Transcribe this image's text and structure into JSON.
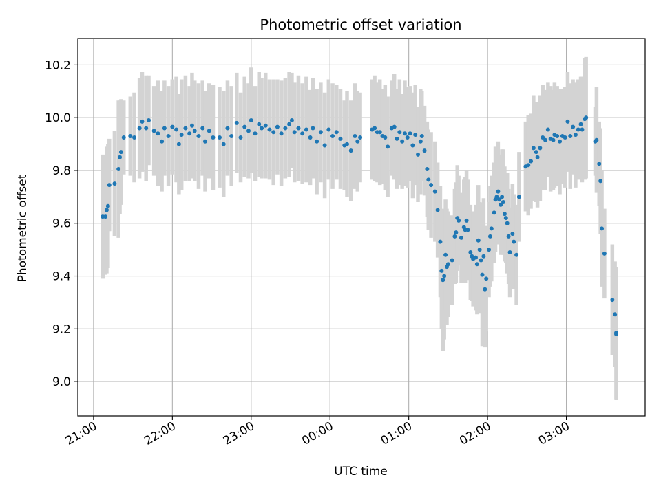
{
  "chart_data": {
    "type": "scatter",
    "title": "Photometric offset variation",
    "xlabel": "UTC time",
    "ylabel": "Photometric offset",
    "x_is_time": true,
    "xlim": [
      "20:48",
      "04:00"
    ],
    "ylim": [
      8.87,
      10.3
    ],
    "x_ticks": [
      "21:00",
      "22:00",
      "23:00",
      "00:00",
      "01:00",
      "02:00",
      "03:00"
    ],
    "y_ticks": [
      9.0,
      9.2,
      9.4,
      9.6,
      9.8,
      10.0,
      10.2
    ],
    "y_tick_labels": [
      "9.0",
      "9.2",
      "9.4",
      "9.6",
      "9.8",
      "10.0",
      "10.2"
    ],
    "grid": true,
    "point_color": "#1f77b4",
    "errorbar_color": "#d3d3d3",
    "series": [
      {
        "points": [
          {
            "t": "21:07",
            "y": 9.625,
            "err": 0.235
          },
          {
            "t": "21:09",
            "y": 9.625,
            "err": 0.22
          },
          {
            "t": "21:10",
            "y": 9.65,
            "err": 0.24
          },
          {
            "t": "21:11",
            "y": 9.665,
            "err": 0.235
          },
          {
            "t": "21:12",
            "y": 9.745,
            "err": 0.175
          },
          {
            "t": "21:16",
            "y": 9.75,
            "err": 0.2
          },
          {
            "t": "21:19",
            "y": 9.805,
            "err": 0.26
          },
          {
            "t": "21:20",
            "y": 9.85,
            "err": 0.215
          },
          {
            "t": "21:21",
            "y": 9.87,
            "err": 0.2
          },
          {
            "t": "21:23",
            "y": 9.925,
            "err": 0.14
          },
          {
            "t": "21:28",
            "y": 9.93,
            "err": 0.15
          },
          {
            "t": "21:31",
            "y": 9.925,
            "err": 0.17
          },
          {
            "t": "21:35",
            "y": 9.96,
            "err": 0.19
          },
          {
            "t": "21:37",
            "y": 9.985,
            "err": 0.19
          },
          {
            "t": "21:40",
            "y": 9.96,
            "err": 0.2
          },
          {
            "t": "21:42",
            "y": 9.99,
            "err": 0.17
          },
          {
            "t": "21:46",
            "y": 9.95,
            "err": 0.17
          },
          {
            "t": "21:49",
            "y": 9.94,
            "err": 0.2
          },
          {
            "t": "21:52",
            "y": 9.91,
            "err": 0.19
          },
          {
            "t": "21:54",
            "y": 9.96,
            "err": 0.18
          },
          {
            "t": "21:57",
            "y": 9.93,
            "err": 0.19
          },
          {
            "t": "22:00",
            "y": 9.965,
            "err": 0.18
          },
          {
            "t": "22:03",
            "y": 9.955,
            "err": 0.2
          },
          {
            "t": "22:05",
            "y": 9.9,
            "err": 0.19
          },
          {
            "t": "22:07",
            "y": 9.935,
            "err": 0.21
          },
          {
            "t": "22:10",
            "y": 9.96,
            "err": 0.2
          },
          {
            "t": "22:13",
            "y": 9.94,
            "err": 0.18
          },
          {
            "t": "22:15",
            "y": 9.97,
            "err": 0.2
          },
          {
            "t": "22:17",
            "y": 9.95,
            "err": 0.19
          },
          {
            "t": "22:20",
            "y": 9.93,
            "err": 0.2
          },
          {
            "t": "22:23",
            "y": 9.96,
            "err": 0.18
          },
          {
            "t": "22:25",
            "y": 9.91,
            "err": 0.19
          },
          {
            "t": "22:28",
            "y": 9.95,
            "err": 0.18
          },
          {
            "t": "22:31",
            "y": 9.925,
            "err": 0.2
          },
          {
            "t": "22:36",
            "y": 9.925,
            "err": 0.19
          },
          {
            "t": "22:39",
            "y": 9.9,
            "err": 0.2
          },
          {
            "t": "22:42",
            "y": 9.96,
            "err": 0.18
          },
          {
            "t": "22:45",
            "y": 9.93,
            "err": 0.19
          },
          {
            "t": "22:49",
            "y": 9.98,
            "err": 0.19
          },
          {
            "t": "22:52",
            "y": 9.925,
            "err": 0.17
          },
          {
            "t": "22:55",
            "y": 9.965,
            "err": 0.19
          },
          {
            "t": "22:58",
            "y": 9.95,
            "err": 0.18
          },
          {
            "t": "23:00",
            "y": 9.99,
            "err": 0.2
          },
          {
            "t": "23:03",
            "y": 9.94,
            "err": 0.18
          },
          {
            "t": "23:06",
            "y": 9.975,
            "err": 0.2
          },
          {
            "t": "23:08",
            "y": 9.96,
            "err": 0.19
          },
          {
            "t": "23:11",
            "y": 9.97,
            "err": 0.2
          },
          {
            "t": "23:14",
            "y": 9.955,
            "err": 0.19
          },
          {
            "t": "23:17",
            "y": 9.945,
            "err": 0.2
          },
          {
            "t": "23:20",
            "y": 9.965,
            "err": 0.18
          },
          {
            "t": "23:23",
            "y": 9.94,
            "err": 0.2
          },
          {
            "t": "23:26",
            "y": 9.96,
            "err": 0.19
          },
          {
            "t": "23:29",
            "y": 9.975,
            "err": 0.2
          },
          {
            "t": "23:31",
            "y": 9.99,
            "err": 0.18
          },
          {
            "t": "23:33",
            "y": 9.945,
            "err": 0.19
          },
          {
            "t": "23:36",
            "y": 9.96,
            "err": 0.2
          },
          {
            "t": "23:39",
            "y": 9.94,
            "err": 0.19
          },
          {
            "t": "23:42",
            "y": 9.955,
            "err": 0.2
          },
          {
            "t": "23:45",
            "y": 9.925,
            "err": 0.18
          },
          {
            "t": "23:47",
            "y": 9.96,
            "err": 0.19
          },
          {
            "t": "23:50",
            "y": 9.91,
            "err": 0.2
          },
          {
            "t": "23:53",
            "y": 9.945,
            "err": 0.19
          },
          {
            "t": "23:56",
            "y": 9.895,
            "err": 0.2
          },
          {
            "t": "23:59",
            "y": 9.955,
            "err": 0.19
          },
          {
            "t": "00:02",
            "y": 9.93,
            "err": 0.2
          },
          {
            "t": "00:05",
            "y": 9.945,
            "err": 0.18
          },
          {
            "t": "00:08",
            "y": 9.92,
            "err": 0.19
          },
          {
            "t": "00:11",
            "y": 9.895,
            "err": 0.17
          },
          {
            "t": "00:13",
            "y": 9.9,
            "err": 0.2
          },
          {
            "t": "00:16",
            "y": 9.875,
            "err": 0.19
          },
          {
            "t": "00:19",
            "y": 9.93,
            "err": 0.2
          },
          {
            "t": "00:21",
            "y": 9.91,
            "err": 0.19
          },
          {
            "t": "00:23",
            "y": 9.925,
            "err": 0.17
          },
          {
            "t": "00:32",
            "y": 9.955,
            "err": 0.19
          },
          {
            "t": "00:34",
            "y": 9.96,
            "err": 0.2
          },
          {
            "t": "00:36",
            "y": 9.945,
            "err": 0.19
          },
          {
            "t": "00:38",
            "y": 9.945,
            "err": 0.2
          },
          {
            "t": "00:40",
            "y": 9.93,
            "err": 0.18
          },
          {
            "t": "00:42",
            "y": 9.925,
            "err": 0.2
          },
          {
            "t": "00:44",
            "y": 9.89,
            "err": 0.19
          },
          {
            "t": "00:47",
            "y": 9.96,
            "err": 0.18
          },
          {
            "t": "00:49",
            "y": 9.965,
            "err": 0.2
          },
          {
            "t": "00:51",
            "y": 9.92,
            "err": 0.19
          },
          {
            "t": "00:53",
            "y": 9.945,
            "err": 0.2
          },
          {
            "t": "00:55",
            "y": 9.91,
            "err": 0.18
          },
          {
            "t": "00:57",
            "y": 9.94,
            "err": 0.2
          },
          {
            "t": "00:59",
            "y": 9.925,
            "err": 0.19
          },
          {
            "t": "01:01",
            "y": 9.94,
            "err": 0.18
          },
          {
            "t": "01:03",
            "y": 9.895,
            "err": 0.2
          },
          {
            "t": "01:05",
            "y": 9.935,
            "err": 0.19
          },
          {
            "t": "01:07",
            "y": 9.86,
            "err": 0.18
          },
          {
            "t": "01:09",
            "y": 9.91,
            "err": 0.2
          },
          {
            "t": "01:10",
            "y": 9.93,
            "err": 0.17
          },
          {
            "t": "01:12",
            "y": 9.875,
            "err": 0.17
          },
          {
            "t": "01:14",
            "y": 9.805,
            "err": 0.18
          },
          {
            "t": "01:15",
            "y": 9.765,
            "err": 0.19
          },
          {
            "t": "01:17",
            "y": 9.745,
            "err": 0.2
          },
          {
            "t": "01:20",
            "y": 9.72,
            "err": 0.19
          },
          {
            "t": "01:22",
            "y": 9.65,
            "err": 0.18
          },
          {
            "t": "01:24",
            "y": 9.53,
            "err": 0.21
          },
          {
            "t": "01:25",
            "y": 9.42,
            "err": 0.22
          },
          {
            "t": "01:26",
            "y": 9.385,
            "err": 0.27
          },
          {
            "t": "01:27",
            "y": 9.4,
            "err": 0.24
          },
          {
            "t": "01:28",
            "y": 9.48,
            "err": 0.21
          },
          {
            "t": "01:29",
            "y": 9.435,
            "err": 0.22
          },
          {
            "t": "01:30",
            "y": 9.445,
            "err": 0.2
          },
          {
            "t": "01:33",
            "y": 9.46,
            "err": 0.17
          },
          {
            "t": "01:35",
            "y": 9.55,
            "err": 0.18
          },
          {
            "t": "01:36",
            "y": 9.565,
            "err": 0.19
          },
          {
            "t": "01:37",
            "y": 9.62,
            "err": 0.2
          },
          {
            "t": "01:38",
            "y": 9.61,
            "err": 0.17
          },
          {
            "t": "01:40",
            "y": 9.545,
            "err": 0.17
          },
          {
            "t": "01:42",
            "y": 9.585,
            "err": 0.18
          },
          {
            "t": "01:43",
            "y": 9.575,
            "err": 0.2
          },
          {
            "t": "01:44",
            "y": 9.61,
            "err": 0.19
          },
          {
            "t": "01:45",
            "y": 9.575,
            "err": 0.19
          },
          {
            "t": "01:47",
            "y": 9.49,
            "err": 0.18
          },
          {
            "t": "01:48",
            "y": 9.475,
            "err": 0.17
          },
          {
            "t": "01:49",
            "y": 9.465,
            "err": 0.18
          },
          {
            "t": "01:51",
            "y": 9.47,
            "err": 0.2
          },
          {
            "t": "01:52",
            "y": 9.445,
            "err": 0.19
          },
          {
            "t": "01:53",
            "y": 9.535,
            "err": 0.21
          },
          {
            "t": "01:54",
            "y": 9.5,
            "err": 0.18
          },
          {
            "t": "01:55",
            "y": 9.46,
            "err": 0.2
          },
          {
            "t": "01:56",
            "y": 9.405,
            "err": 0.27
          },
          {
            "t": "01:57",
            "y": 9.475,
            "err": 0.22
          },
          {
            "t": "01:58",
            "y": 9.35,
            "err": 0.22
          },
          {
            "t": "01:59",
            "y": 9.39,
            "err": 0.2
          },
          {
            "t": "02:01",
            "y": 9.5,
            "err": 0.18
          },
          {
            "t": "02:02",
            "y": 9.55,
            "err": 0.19
          },
          {
            "t": "02:03",
            "y": 9.58,
            "err": 0.2
          },
          {
            "t": "02:05",
            "y": 9.64,
            "err": 0.19
          },
          {
            "t": "02:06",
            "y": 9.69,
            "err": 0.2
          },
          {
            "t": "02:07",
            "y": 9.7,
            "err": 0.18
          },
          {
            "t": "02:08",
            "y": 9.72,
            "err": 0.19
          },
          {
            "t": "02:09",
            "y": 9.69,
            "err": 0.17
          },
          {
            "t": "02:10",
            "y": 9.67,
            "err": 0.19
          },
          {
            "t": "02:11",
            "y": 9.7,
            "err": 0.18
          },
          {
            "t": "02:12",
            "y": 9.68,
            "err": 0.2
          },
          {
            "t": "02:13",
            "y": 9.635,
            "err": 0.18
          },
          {
            "t": "02:14",
            "y": 9.62,
            "err": 0.17
          },
          {
            "t": "02:15",
            "y": 9.6,
            "err": 0.19
          },
          {
            "t": "02:16",
            "y": 9.55,
            "err": 0.18
          },
          {
            "t": "02:17",
            "y": 9.49,
            "err": 0.17
          },
          {
            "t": "02:19",
            "y": 9.56,
            "err": 0.19
          },
          {
            "t": "02:20",
            "y": 9.53,
            "err": 0.18
          },
          {
            "t": "02:22",
            "y": 9.48,
            "err": 0.19
          },
          {
            "t": "02:24",
            "y": 9.7,
            "err": 0.17
          },
          {
            "t": "02:29",
            "y": 9.815,
            "err": 0.17
          },
          {
            "t": "02:31",
            "y": 9.82,
            "err": 0.19
          },
          {
            "t": "02:33",
            "y": 9.835,
            "err": 0.18
          },
          {
            "t": "02:35",
            "y": 9.885,
            "err": 0.2
          },
          {
            "t": "02:37",
            "y": 9.87,
            "err": 0.19
          },
          {
            "t": "02:38",
            "y": 9.85,
            "err": 0.19
          },
          {
            "t": "02:40",
            "y": 9.885,
            "err": 0.2
          },
          {
            "t": "02:42",
            "y": 9.925,
            "err": 0.2
          },
          {
            "t": "02:44",
            "y": 9.915,
            "err": 0.19
          },
          {
            "t": "02:46",
            "y": 9.955,
            "err": 0.18
          },
          {
            "t": "02:48",
            "y": 9.92,
            "err": 0.2
          },
          {
            "t": "02:50",
            "y": 9.915,
            "err": 0.19
          },
          {
            "t": "02:51",
            "y": 9.935,
            "err": 0.2
          },
          {
            "t": "02:53",
            "y": 9.93,
            "err": 0.19
          },
          {
            "t": "02:55",
            "y": 9.91,
            "err": 0.2
          },
          {
            "t": "02:57",
            "y": 9.93,
            "err": 0.18
          },
          {
            "t": "02:59",
            "y": 9.925,
            "err": 0.19
          },
          {
            "t": "03:01",
            "y": 9.985,
            "err": 0.19
          },
          {
            "t": "03:03",
            "y": 9.93,
            "err": 0.2
          },
          {
            "t": "03:05",
            "y": 9.965,
            "err": 0.18
          },
          {
            "t": "03:07",
            "y": 9.935,
            "err": 0.2
          },
          {
            "t": "03:09",
            "y": 9.955,
            "err": 0.19
          },
          {
            "t": "03:11",
            "y": 9.975,
            "err": 0.18
          },
          {
            "t": "03:12",
            "y": 9.955,
            "err": 0.2
          },
          {
            "t": "03:14",
            "y": 9.995,
            "err": 0.23
          },
          {
            "t": "03:15",
            "y": 10.0,
            "err": 0.23
          },
          {
            "t": "03:22",
            "y": 9.91,
            "err": 0.13
          },
          {
            "t": "03:23",
            "y": 9.915,
            "err": 0.2
          },
          {
            "t": "03:25",
            "y": 9.825,
            "err": 0.16
          },
          {
            "t": "03:26",
            "y": 9.76,
            "err": 0.2
          },
          {
            "t": "03:27",
            "y": 9.58,
            "err": 0.22
          },
          {
            "t": "03:29",
            "y": 9.485,
            "err": 0.17
          },
          {
            "t": "03:35",
            "y": 9.31,
            "err": 0.21
          },
          {
            "t": "03:37",
            "y": 9.255,
            "err": 0.2
          },
          {
            "t": "03:38",
            "y": 9.185,
            "err": 0.25
          },
          {
            "t": "03:38",
            "y": 9.18,
            "err": 0.25
          }
        ]
      }
    ]
  }
}
